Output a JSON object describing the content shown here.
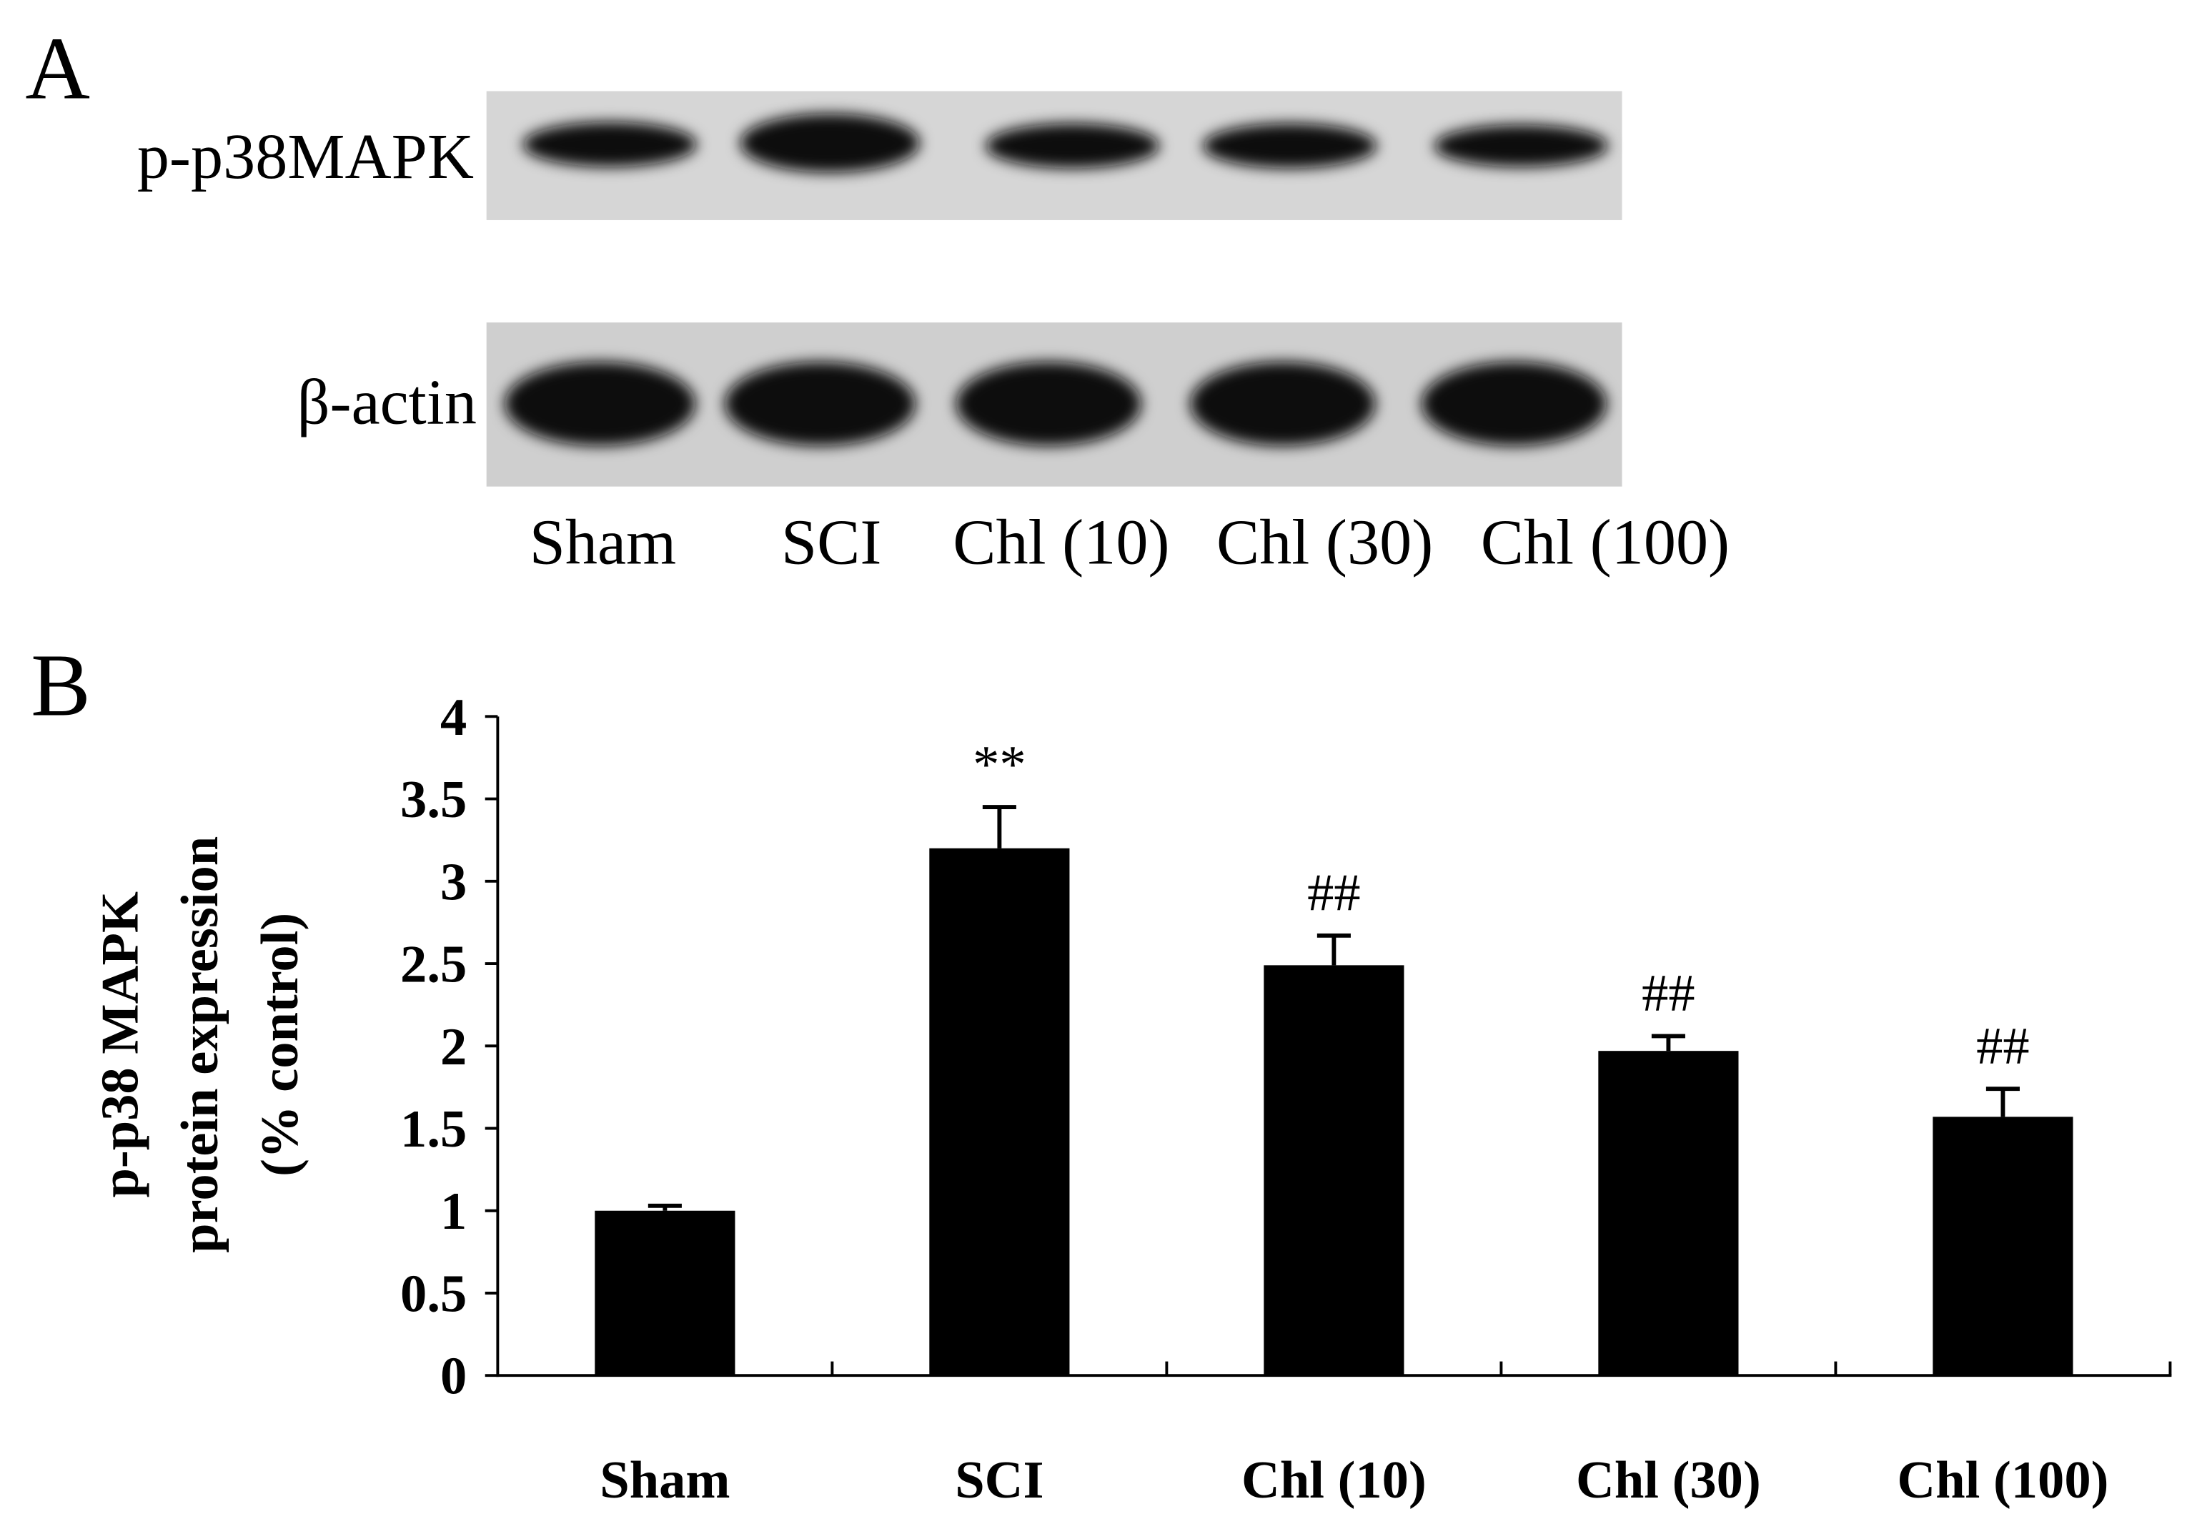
{
  "panels": {
    "a": "A",
    "b": "B"
  },
  "blot": {
    "rows": [
      "p-p38MAPK",
      "β-actin"
    ],
    "lanes": [
      "Sham",
      "SCI",
      "Chl (10)",
      "Chl (30)",
      "Chl (100)"
    ]
  },
  "chart_data": {
    "type": "bar",
    "y_label": [
      "p-p38 MAPK",
      "protein expression",
      "(% control)"
    ],
    "categories": [
      "Sham",
      "SCI",
      "Chl (10)",
      "Chl (30)",
      "Chl (100)"
    ],
    "values": [
      1.0,
      3.2,
      2.49,
      1.97,
      1.57
    ],
    "errors": [
      0.03,
      0.25,
      0.18,
      0.09,
      0.17
    ],
    "annotations": [
      null,
      "**",
      "##",
      "##",
      "##"
    ],
    "color": "#000000",
    "ylim": [
      0,
      4
    ],
    "yticks": [
      0,
      0.5,
      1,
      1.5,
      2,
      2.5,
      3,
      3.5,
      4
    ]
  }
}
